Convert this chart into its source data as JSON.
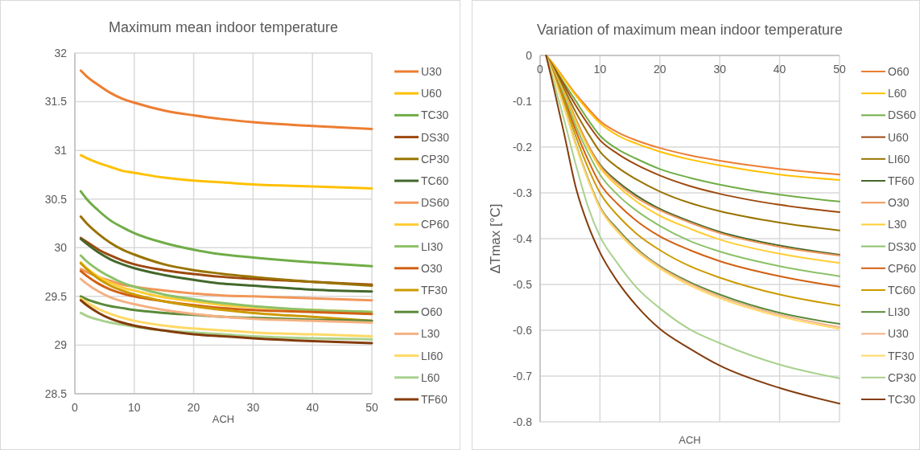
{
  "chart_data": [
    {
      "type": "line",
      "title": "Maximum mean indoor temperature",
      "xlabel": "ACH",
      "x": [
        1,
        2,
        4,
        6,
        8,
        10,
        15,
        20,
        25,
        30,
        40,
        50
      ],
      "xlim": [
        0,
        50
      ],
      "xticks": [
        0,
        10,
        20,
        30,
        40,
        50
      ],
      "ylim": [
        28.5,
        32
      ],
      "yticks": [
        28.5,
        29,
        29.5,
        30,
        30.5,
        31,
        31.5,
        32
      ],
      "grid": true,
      "legend": "right",
      "series": [
        {
          "name": "U30",
          "color": "#ed7d31",
          "values": [
            31.82,
            31.76,
            31.67,
            31.59,
            31.53,
            31.49,
            31.41,
            31.36,
            31.32,
            31.29,
            31.25,
            31.22
          ]
        },
        {
          "name": "U60",
          "color": "#ffc000",
          "values": [
            30.95,
            30.92,
            30.87,
            30.83,
            30.79,
            30.77,
            30.72,
            30.69,
            30.67,
            30.65,
            30.63,
            30.61
          ]
        },
        {
          "name": "TC30",
          "color": "#70ad47",
          "values": [
            30.58,
            30.5,
            30.38,
            30.28,
            30.21,
            30.15,
            30.05,
            29.98,
            29.93,
            29.9,
            29.85,
            29.81
          ]
        },
        {
          "name": "DS30",
          "color": "#9e480e",
          "values": [
            30.1,
            30.06,
            29.98,
            29.92,
            29.87,
            29.83,
            29.77,
            29.73,
            29.7,
            29.68,
            29.65,
            29.62
          ]
        },
        {
          "name": "CP30",
          "color": "#997300",
          "values": [
            30.32,
            30.25,
            30.14,
            30.05,
            29.98,
            29.93,
            29.83,
            29.77,
            29.73,
            29.7,
            29.65,
            29.61
          ]
        },
        {
          "name": "TC60",
          "color": "#43682b",
          "values": [
            30.09,
            30.04,
            29.95,
            29.88,
            29.83,
            29.79,
            29.72,
            29.67,
            29.63,
            29.61,
            29.57,
            29.55
          ]
        },
        {
          "name": "DS60",
          "color": "#f1975a",
          "values": [
            29.78,
            29.75,
            29.7,
            29.66,
            29.62,
            29.6,
            29.56,
            29.53,
            29.51,
            29.5,
            29.48,
            29.46
          ]
        },
        {
          "name": "CP60",
          "color": "#ffcd33",
          "values": [
            29.85,
            29.79,
            29.7,
            29.64,
            29.59,
            29.56,
            29.49,
            29.45,
            29.41,
            29.39,
            29.36,
            29.34
          ]
        },
        {
          "name": "LI30",
          "color": "#8cc168",
          "values": [
            29.92,
            29.86,
            29.77,
            29.7,
            29.64,
            29.6,
            29.52,
            29.47,
            29.43,
            29.4,
            29.36,
            29.34
          ]
        },
        {
          "name": "O30",
          "color": "#d26012",
          "values": [
            29.76,
            29.71,
            29.63,
            29.57,
            29.53,
            29.5,
            29.45,
            29.41,
            29.38,
            29.36,
            29.34,
            29.32
          ]
        },
        {
          "name": "TF30",
          "color": "#cc9a00",
          "values": [
            29.84,
            29.78,
            29.68,
            29.61,
            29.56,
            29.52,
            29.45,
            29.4,
            29.36,
            29.33,
            29.29,
            29.25
          ]
        },
        {
          "name": "O60",
          "color": "#5a8a39",
          "values": [
            29.5,
            29.47,
            29.43,
            29.4,
            29.38,
            29.36,
            29.33,
            29.31,
            29.29,
            29.28,
            29.26,
            29.25
          ]
        },
        {
          "name": "L30",
          "color": "#f4b183",
          "values": [
            29.68,
            29.63,
            29.55,
            29.49,
            29.45,
            29.42,
            29.36,
            29.32,
            29.29,
            29.27,
            29.25,
            29.23
          ]
        },
        {
          "name": "LI60",
          "color": "#ffd966",
          "values": [
            29.48,
            29.44,
            29.37,
            29.32,
            29.28,
            29.25,
            29.2,
            29.17,
            29.15,
            29.13,
            29.11,
            29.09
          ]
        },
        {
          "name": "L60",
          "color": "#a9d18e",
          "values": [
            29.33,
            29.3,
            29.26,
            29.23,
            29.21,
            29.19,
            29.15,
            29.13,
            29.11,
            29.09,
            29.07,
            29.06
          ]
        },
        {
          "name": "TF60",
          "color": "#843c0c",
          "values": [
            29.46,
            29.41,
            29.33,
            29.27,
            29.23,
            29.2,
            29.15,
            29.11,
            29.09,
            29.07,
            29.04,
            29.02
          ]
        }
      ]
    },
    {
      "type": "line",
      "title": "Variation of maximum mean indoor temperature",
      "xlabel": "ACH",
      "ylabel": "ΔTmax [°C]",
      "x": [
        1,
        2,
        4,
        6,
        8,
        10,
        13,
        16,
        20,
        25,
        30,
        40,
        50
      ],
      "xlim": [
        0,
        50
      ],
      "xticks": [
        0,
        10,
        20,
        30,
        40,
        50
      ],
      "ylim": [
        -0.8,
        0
      ],
      "yticks": [
        -0.8,
        -0.7,
        -0.6,
        -0.5,
        -0.4,
        -0.3,
        -0.2,
        -0.1,
        0
      ],
      "grid": true,
      "legend": "right",
      "series": [
        {
          "name": "O60",
          "color": "#ed7d31",
          "values": [
            0,
            -0.015,
            -0.05,
            -0.085,
            -0.115,
            -0.143,
            -0.168,
            -0.185,
            -0.202,
            -0.218,
            -0.23,
            -0.248,
            -0.26
          ]
        },
        {
          "name": "L60",
          "color": "#ffc000",
          "values": [
            0,
            -0.016,
            -0.052,
            -0.088,
            -0.12,
            -0.148,
            -0.175,
            -0.192,
            -0.21,
            -0.227,
            -0.24,
            -0.26,
            -0.272
          ]
        },
        {
          "name": "DS60",
          "color": "#70ad47",
          "values": [
            0,
            -0.02,
            -0.06,
            -0.1,
            -0.14,
            -0.175,
            -0.205,
            -0.225,
            -0.248,
            -0.267,
            -0.282,
            -0.304,
            -0.319
          ]
        },
        {
          "name": "U60",
          "color": "#9e480e",
          "values": [
            0,
            -0.02,
            -0.065,
            -0.11,
            -0.15,
            -0.185,
            -0.215,
            -0.238,
            -0.262,
            -0.285,
            -0.302,
            -0.326,
            -0.342
          ]
        },
        {
          "name": "LI60",
          "color": "#997300",
          "values": [
            0,
            -0.022,
            -0.072,
            -0.125,
            -0.17,
            -0.21,
            -0.245,
            -0.27,
            -0.297,
            -0.322,
            -0.34,
            -0.365,
            -0.382
          ]
        },
        {
          "name": "TF60",
          "color": "#43682b",
          "values": [
            0,
            -0.025,
            -0.08,
            -0.14,
            -0.195,
            -0.238,
            -0.276,
            -0.305,
            -0.335,
            -0.362,
            -0.385,
            -0.415,
            -0.435
          ]
        },
        {
          "name": "O30",
          "color": "#f1975a",
          "values": [
            0,
            -0.025,
            -0.08,
            -0.14,
            -0.195,
            -0.24,
            -0.28,
            -0.31,
            -0.338,
            -0.365,
            -0.388,
            -0.418,
            -0.437
          ]
        },
        {
          "name": "L30",
          "color": "#ffcd33",
          "values": [
            0,
            -0.026,
            -0.083,
            -0.145,
            -0.2,
            -0.245,
            -0.286,
            -0.318,
            -0.35,
            -0.378,
            -0.402,
            -0.433,
            -0.453
          ]
        },
        {
          "name": "DS30",
          "color": "#8cc168",
          "values": [
            0,
            -0.028,
            -0.088,
            -0.155,
            -0.212,
            -0.26,
            -0.305,
            -0.338,
            -0.372,
            -0.405,
            -0.428,
            -0.46,
            -0.482
          ]
        },
        {
          "name": "CP60",
          "color": "#d26012",
          "values": [
            0,
            -0.03,
            -0.095,
            -0.165,
            -0.228,
            -0.28,
            -0.325,
            -0.36,
            -0.395,
            -0.425,
            -0.449,
            -0.482,
            -0.505
          ]
        },
        {
          "name": "TC60",
          "color": "#cc9a00",
          "values": [
            0,
            -0.032,
            -0.1,
            -0.178,
            -0.245,
            -0.3,
            -0.35,
            -0.388,
            -0.425,
            -0.46,
            -0.485,
            -0.522,
            -0.546
          ]
        },
        {
          "name": "LI30",
          "color": "#5a8a39",
          "values": [
            0,
            -0.035,
            -0.11,
            -0.195,
            -0.268,
            -0.33,
            -0.38,
            -0.42,
            -0.46,
            -0.495,
            -0.522,
            -0.562,
            -0.586
          ]
        },
        {
          "name": "U30",
          "color": "#f4b183",
          "values": [
            0,
            -0.035,
            -0.112,
            -0.197,
            -0.27,
            -0.332,
            -0.383,
            -0.423,
            -0.462,
            -0.498,
            -0.526,
            -0.566,
            -0.593
          ]
        },
        {
          "name": "TF30",
          "color": "#ffd966",
          "values": [
            0,
            -0.036,
            -0.113,
            -0.198,
            -0.272,
            -0.334,
            -0.386,
            -0.426,
            -0.465,
            -0.502,
            -0.53,
            -0.57,
            -0.597
          ]
        },
        {
          "name": "CP30",
          "color": "#a9d18e",
          "values": [
            0,
            -0.045,
            -0.14,
            -0.24,
            -0.33,
            -0.395,
            -0.455,
            -0.505,
            -0.552,
            -0.598,
            -0.628,
            -0.675,
            -0.705
          ]
        },
        {
          "name": "TC30",
          "color": "#843c0c",
          "values": [
            0,
            -0.055,
            -0.17,
            -0.29,
            -0.37,
            -0.43,
            -0.495,
            -0.545,
            -0.597,
            -0.64,
            -0.677,
            -0.726,
            -0.76
          ]
        }
      ]
    }
  ]
}
